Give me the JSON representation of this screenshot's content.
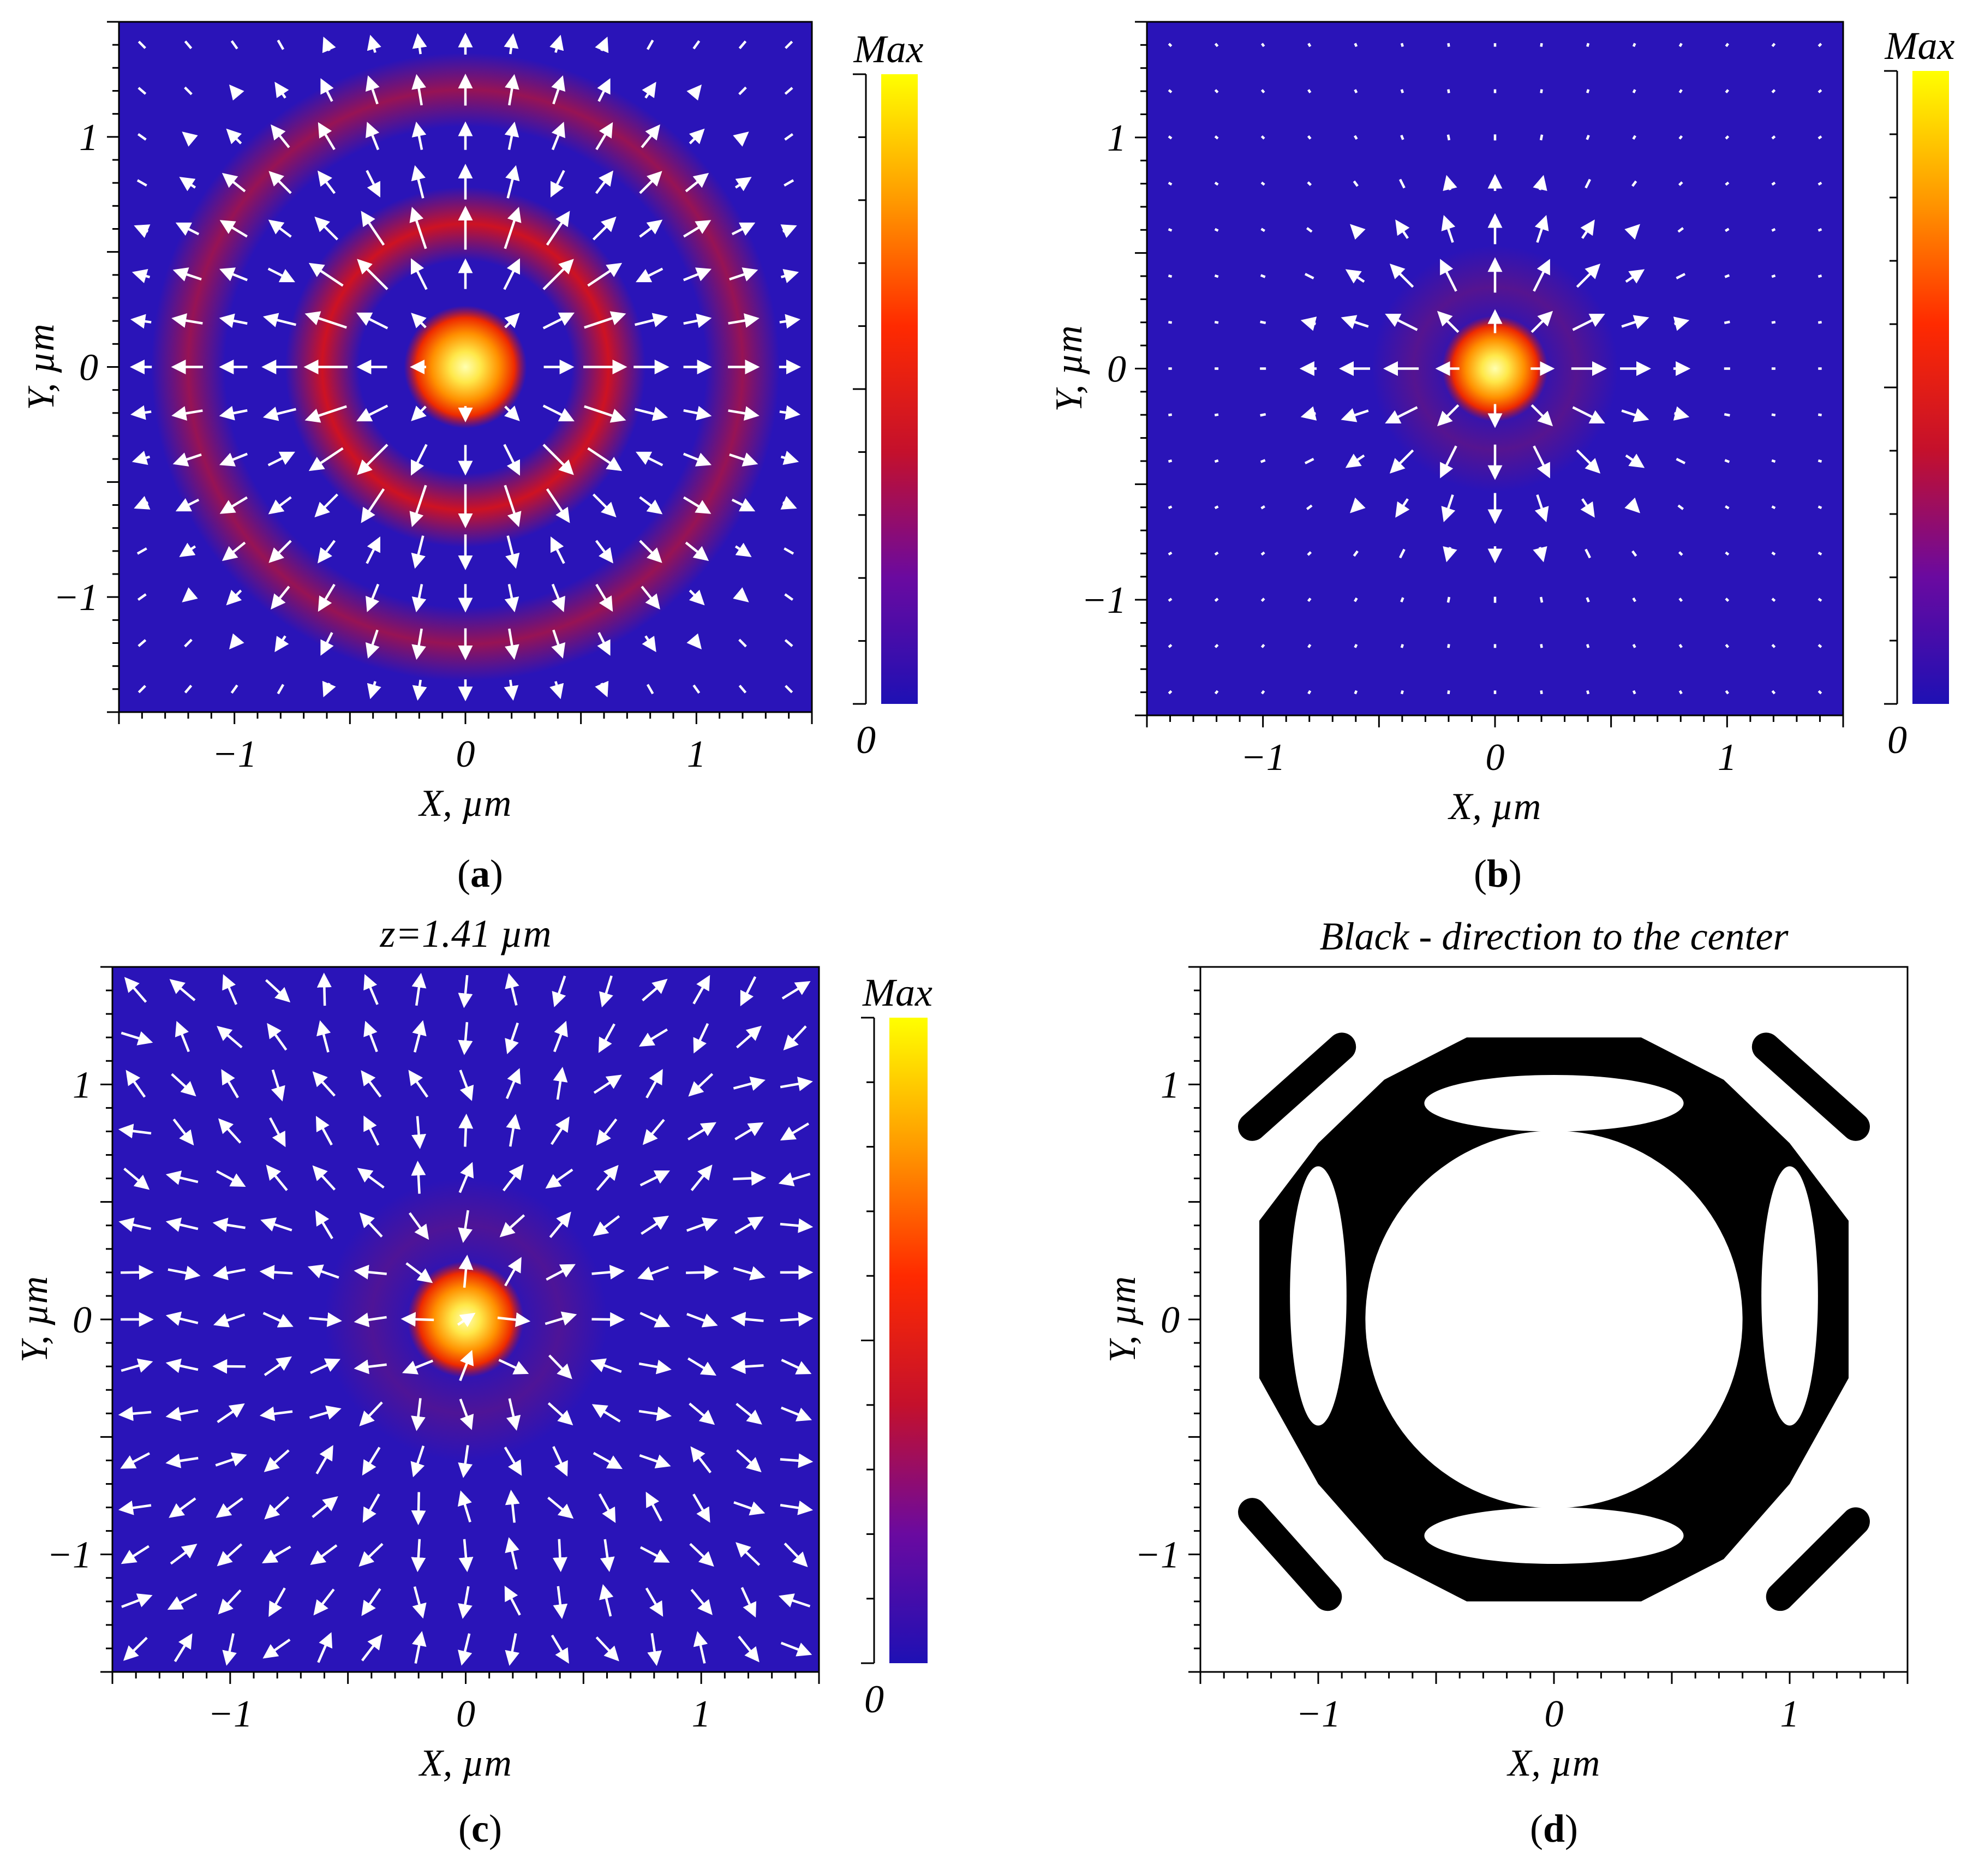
{
  "colors": {
    "background": "#2a14b8",
    "field_red": "#d41010",
    "core_yellow": "#ffe84a",
    "arrow": "#ffffff",
    "mask": "#000000",
    "colorbar_stops": [
      "#1e10b4",
      "#6a0aa0",
      "#c4102c",
      "#ff2a00",
      "#ff9a00",
      "#ffff00"
    ]
  },
  "chart_data": [
    {
      "type": "heatmap",
      "panel": "a",
      "panel_label": "a",
      "title": "",
      "xlabel": "X, µm",
      "ylabel": "Y, µm",
      "xlim": [
        -1.5,
        1.5
      ],
      "ylim": [
        -1.5,
        1.5
      ],
      "xticks": [
        {
          "v": -1,
          "t": "−1"
        },
        {
          "v": 0,
          "t": "0"
        },
        {
          "v": 1,
          "t": "1"
        }
      ],
      "yticks": [
        {
          "v": -1,
          "t": "−1"
        },
        {
          "v": 0,
          "t": "0"
        },
        {
          "v": 1,
          "t": "1"
        }
      ],
      "colorbar": {
        "min_label": "0",
        "max_label": "Max"
      },
      "intensity": {
        "core_radius": 0.14,
        "rings": [
          {
            "radius": 0.62,
            "width": 0.16,
            "level": 0.45
          },
          {
            "radius": 1.2,
            "width": 0.16,
            "level": 0.3
          }
        ]
      },
      "arrows": "radial"
    },
    {
      "type": "heatmap",
      "panel": "b",
      "panel_label": "b",
      "title": "",
      "xlabel": "X, µm",
      "ylabel": "Y, µm",
      "xlim": [
        -1.5,
        1.5
      ],
      "ylim": [
        -1.5,
        1.5
      ],
      "xticks": [
        {
          "v": -1,
          "t": "−1"
        },
        {
          "v": 0,
          "t": "0"
        },
        {
          "v": 1,
          "t": "1"
        }
      ],
      "yticks": [
        {
          "v": -1,
          "t": "−1"
        },
        {
          "v": 0,
          "t": "0"
        },
        {
          "v": 1,
          "t": "1"
        }
      ],
      "colorbar": {
        "min_label": "0",
        "max_label": "Max"
      },
      "intensity": {
        "core_radius": 0.12,
        "rings": [
          {
            "radius": 0.35,
            "width": 0.18,
            "level": 0.12
          }
        ]
      },
      "arrows": "radial-outward"
    },
    {
      "type": "heatmap",
      "panel": "c",
      "panel_label": "c",
      "title": "z=1.41 µm",
      "xlabel": "X, µm",
      "ylabel": "Y, µm",
      "xlim": [
        -1.5,
        1.5
      ],
      "ylim": [
        -1.5,
        1.5
      ],
      "xticks": [
        {
          "v": -1,
          "t": "−1"
        },
        {
          "v": 0,
          "t": "0"
        },
        {
          "v": 1,
          "t": "1"
        }
      ],
      "yticks": [
        {
          "v": -1,
          "t": "−1"
        },
        {
          "v": 0,
          "t": "0"
        },
        {
          "v": 1,
          "t": "1"
        }
      ],
      "colorbar": {
        "min_label": "0",
        "max_label": "Max"
      },
      "intensity": {
        "core_radius": 0.13,
        "rings": [
          {
            "radius": 0.4,
            "width": 0.2,
            "level": 0.1
          }
        ]
      },
      "arrows": "mixed"
    },
    {
      "type": "heatmap",
      "panel": "d",
      "panel_label": "d",
      "title": "Black - direction to the center",
      "xlabel": "X, µm",
      "ylabel": "Y, µm",
      "xlim": [
        -1.5,
        1.5
      ],
      "ylim": [
        -1.5,
        1.5
      ],
      "xticks": [
        {
          "v": -1,
          "t": "−1"
        },
        {
          "v": 0,
          "t": "0"
        },
        {
          "v": 1,
          "t": "1"
        }
      ],
      "yticks": [
        {
          "v": -1,
          "t": "−1"
        },
        {
          "v": 0,
          "t": "0"
        },
        {
          "v": 1,
          "t": "1"
        }
      ],
      "binary_mask": {
        "outer_ring": [
          [
            -0.37,
            1.2
          ],
          [
            0.37,
            1.2
          ],
          [
            0.72,
            1.02
          ],
          [
            1.0,
            0.75
          ],
          [
            1.25,
            0.42
          ],
          [
            1.25,
            -0.25
          ],
          [
            1.0,
            -0.7
          ],
          [
            0.72,
            -1.02
          ],
          [
            0.37,
            -1.2
          ],
          [
            -0.37,
            -1.2
          ],
          [
            -0.72,
            -1.02
          ],
          [
            -1.0,
            -0.7
          ],
          [
            -1.25,
            -0.25
          ],
          [
            -1.25,
            0.42
          ],
          [
            -1.0,
            0.75
          ],
          [
            -0.72,
            1.02
          ]
        ],
        "inner_hole_radius": 0.8,
        "outer_holes": [
          {
            "cx": 0.0,
            "cy": 0.92,
            "rx": 0.55,
            "ry": 0.12
          },
          {
            "cx": 0.0,
            "cy": -0.92,
            "rx": 0.55,
            "ry": 0.12
          },
          {
            "cx": 1.0,
            "cy": 0.1,
            "rx": 0.12,
            "ry": 0.55
          },
          {
            "cx": -1.0,
            "cy": 0.1,
            "rx": 0.12,
            "ry": 0.55
          }
        ],
        "corner_blobs": [
          {
            "x1": -1.28,
            "y1": 0.82,
            "x2": -0.9,
            "y2": 1.16
          },
          {
            "x1": 0.9,
            "y1": 1.16,
            "x2": 1.28,
            "y2": 0.82
          },
          {
            "x1": -1.28,
            "y1": -0.82,
            "x2": -0.96,
            "y2": -1.18
          },
          {
            "x1": 0.96,
            "y1": -1.18,
            "x2": 1.28,
            "y2": -0.86
          }
        ]
      }
    }
  ]
}
